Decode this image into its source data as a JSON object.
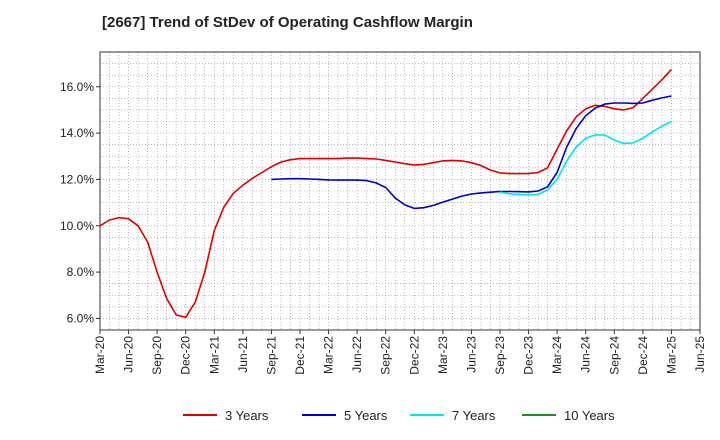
{
  "chart_data": {
    "type": "line",
    "title": "[2667]  Trend of StDev of Operating Cashflow Margin",
    "xlabel": "",
    "ylabel": "",
    "x_ticks": [
      "Mar-20",
      "Jun-20",
      "Sep-20",
      "Dec-20",
      "Mar-21",
      "Jun-21",
      "Sep-21",
      "Dec-21",
      "Mar-22",
      "Jun-22",
      "Sep-22",
      "Dec-22",
      "Mar-23",
      "Jun-23",
      "Sep-23",
      "Dec-23",
      "Mar-24",
      "Jun-24",
      "Sep-24",
      "Dec-24",
      "Mar-25",
      "Jun-25"
    ],
    "y_ticks": [
      "6.0%",
      "8.0%",
      "10.0%",
      "12.0%",
      "14.0%",
      "16.0%"
    ],
    "ylim": [
      5.5,
      17.5
    ],
    "y_tick_values": [
      6,
      8,
      10,
      12,
      14,
      16
    ],
    "grid": true,
    "legend_position": "bottom",
    "series": [
      {
        "name": "3 Years",
        "color": "#e00000",
        "x": [
          "Mar-20",
          "Apr-20",
          "May-20",
          "Jun-20",
          "Jul-20",
          "Aug-20",
          "Sep-20",
          "Oct-20",
          "Nov-20",
          "Dec-20",
          "Jan-21",
          "Feb-21",
          "Mar-21",
          "Apr-21",
          "May-21",
          "Jun-21",
          "Jul-21",
          "Aug-21",
          "Sep-21",
          "Oct-21",
          "Nov-21",
          "Dec-21",
          "Jan-22",
          "Feb-22",
          "Mar-22",
          "Apr-22",
          "May-22",
          "Jun-22",
          "Jul-22",
          "Aug-22",
          "Sep-22",
          "Oct-22",
          "Nov-22",
          "Dec-22",
          "Jan-23",
          "Feb-23",
          "Mar-23",
          "Apr-23",
          "May-23",
          "Jun-23",
          "Jul-23",
          "Aug-23",
          "Sep-23",
          "Oct-23",
          "Nov-23",
          "Dec-23",
          "Jan-24",
          "Feb-24",
          "Mar-24",
          "Apr-24",
          "May-24",
          "Jun-24",
          "Jul-24",
          "Aug-24",
          "Sep-24",
          "Oct-24",
          "Nov-24",
          "Dec-24",
          "Jan-25",
          "Feb-25",
          "Mar-25"
        ],
        "values": [
          10.0,
          10.25,
          10.35,
          10.3,
          10.0,
          9.3,
          8.0,
          6.85,
          6.15,
          6.05,
          6.7,
          8.0,
          9.8,
          10.8,
          11.4,
          11.75,
          12.05,
          12.3,
          12.55,
          12.75,
          12.85,
          12.9,
          12.9,
          12.9,
          12.9,
          12.9,
          12.92,
          12.92,
          12.9,
          12.88,
          12.82,
          12.75,
          12.68,
          12.62,
          12.65,
          12.72,
          12.8,
          12.82,
          12.8,
          12.72,
          12.6,
          12.4,
          12.28,
          12.25,
          12.25,
          12.25,
          12.3,
          12.5,
          13.3,
          14.1,
          14.7,
          15.05,
          15.2,
          15.15,
          15.05,
          15.0,
          15.1,
          15.5,
          15.9,
          16.3,
          16.75
        ]
      },
      {
        "name": "5 Years",
        "color": "#0000c8",
        "x": [
          "Sep-21",
          "Oct-21",
          "Nov-21",
          "Dec-21",
          "Jan-22",
          "Feb-22",
          "Mar-22",
          "Apr-22",
          "May-22",
          "Jun-22",
          "Jul-22",
          "Aug-22",
          "Sep-22",
          "Oct-22",
          "Nov-22",
          "Dec-22",
          "Jan-23",
          "Feb-23",
          "Mar-23",
          "Apr-23",
          "May-23",
          "Jun-23",
          "Jul-23",
          "Aug-23",
          "Sep-23",
          "Oct-23",
          "Nov-23",
          "Dec-23",
          "Jan-24",
          "Feb-24",
          "Mar-24",
          "Apr-24",
          "May-24",
          "Jun-24",
          "Jul-24",
          "Aug-24",
          "Sep-24",
          "Oct-24",
          "Nov-24",
          "Dec-24",
          "Jan-25",
          "Feb-25",
          "Mar-25"
        ],
        "values": [
          12.0,
          12.02,
          12.03,
          12.03,
          12.02,
          12.0,
          11.98,
          11.97,
          11.97,
          11.97,
          11.95,
          11.85,
          11.65,
          11.2,
          10.9,
          10.75,
          10.78,
          10.88,
          11.02,
          11.15,
          11.28,
          11.37,
          11.42,
          11.45,
          11.48,
          11.48,
          11.47,
          11.46,
          11.5,
          11.68,
          12.3,
          13.4,
          14.2,
          14.75,
          15.08,
          15.25,
          15.3,
          15.3,
          15.28,
          15.3,
          15.42,
          15.52,
          15.6
        ]
      },
      {
        "name": "7 Years",
        "color": "#00e5ee",
        "x": [
          "Sep-23",
          "Oct-23",
          "Nov-23",
          "Dec-23",
          "Jan-24",
          "Feb-24",
          "Mar-24",
          "Apr-24",
          "May-24",
          "Jun-24",
          "Jul-24",
          "Aug-24",
          "Sep-24",
          "Oct-24",
          "Nov-24",
          "Dec-24",
          "Jan-25",
          "Feb-25",
          "Mar-25"
        ],
        "values": [
          11.45,
          11.38,
          11.35,
          11.33,
          11.35,
          11.55,
          12.0,
          12.8,
          13.4,
          13.78,
          13.92,
          13.92,
          13.7,
          13.55,
          13.58,
          13.78,
          14.05,
          14.3,
          14.5
        ]
      },
      {
        "name": "10 Years",
        "color": "#228b22",
        "x": [],
        "values": []
      }
    ]
  }
}
